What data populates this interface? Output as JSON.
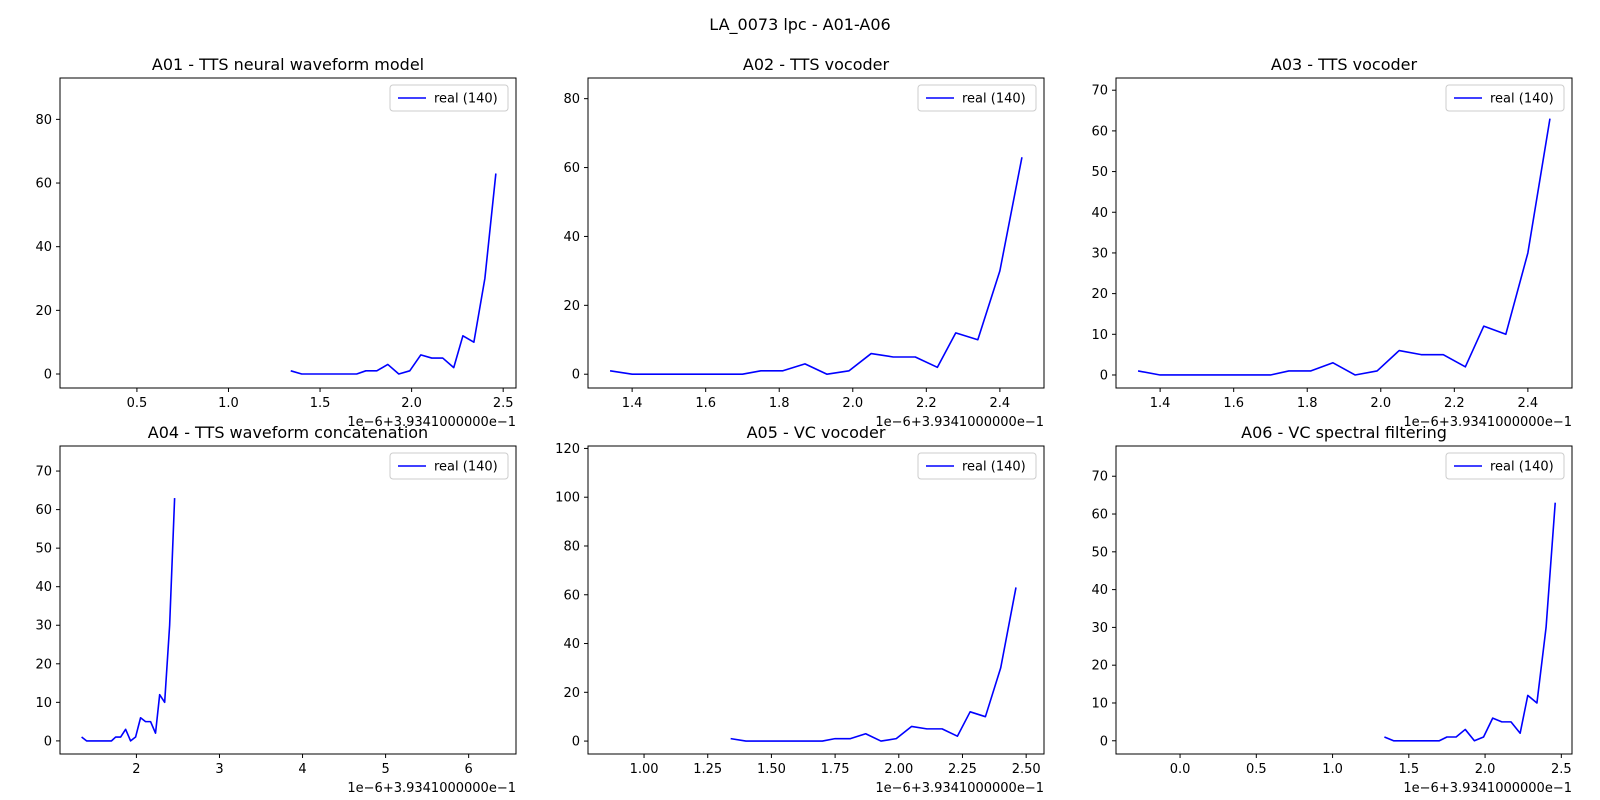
{
  "suptitle": "LA_0073 lpc - A01-A06",
  "chart_data": [
    {
      "type": "line",
      "title": "A01 - TTS neural waveform model",
      "x_offset_label": "1e−6+3.9341000000e−1",
      "xlim": [
        0.08,
        2.57
      ],
      "ylim": [
        -4.4,
        93
      ],
      "xticks": [
        0.5,
        1.0,
        1.5,
        2.0,
        2.5
      ],
      "xtick_labels": [
        "0.5",
        "1.0",
        "1.5",
        "2.0",
        "2.5"
      ],
      "yticks": [
        0,
        20,
        40,
        60,
        80
      ],
      "ytick_labels": [
        "0",
        "20",
        "40",
        "60",
        "80"
      ],
      "legend_position": "upper right",
      "series": [
        {
          "name": "real (140)",
          "color": "#0000ff",
          "x": [
            1.34,
            1.4,
            1.46,
            1.52,
            1.58,
            1.64,
            1.7,
            1.75,
            1.81,
            1.87,
            1.93,
            1.99,
            2.05,
            2.11,
            2.17,
            2.23,
            2.28,
            2.34,
            2.4,
            2.46
          ],
          "y": [
            1,
            0,
            0,
            0,
            0,
            0,
            0,
            1,
            1,
            3,
            0,
            1,
            6,
            5,
            5,
            2,
            12,
            10,
            30,
            63
          ]
        }
      ]
    },
    {
      "type": "line",
      "title": "A02 - TTS vocoder",
      "x_offset_label": "1e−6+3.9341000000e−1",
      "xlim": [
        1.28,
        2.52
      ],
      "ylim": [
        -4,
        86
      ],
      "xticks": [
        1.4,
        1.6,
        1.8,
        2.0,
        2.2,
        2.4
      ],
      "xtick_labels": [
        "1.4",
        "1.6",
        "1.8",
        "2.0",
        "2.2",
        "2.4"
      ],
      "yticks": [
        0,
        20,
        40,
        60,
        80
      ],
      "ytick_labels": [
        "0",
        "20",
        "40",
        "60",
        "80"
      ],
      "legend_position": "upper right",
      "series": [
        {
          "name": "real (140)",
          "color": "#0000ff",
          "x": [
            1.34,
            1.4,
            1.46,
            1.52,
            1.58,
            1.64,
            1.7,
            1.75,
            1.81,
            1.87,
            1.93,
            1.99,
            2.05,
            2.11,
            2.17,
            2.23,
            2.28,
            2.34,
            2.4,
            2.46
          ],
          "y": [
            1,
            0,
            0,
            0,
            0,
            0,
            0,
            1,
            1,
            3,
            0,
            1,
            6,
            5,
            5,
            2,
            12,
            10,
            30,
            63
          ]
        }
      ]
    },
    {
      "type": "line",
      "title": "A03 - TTS vocoder",
      "x_offset_label": "1e−6+3.9341000000e−1",
      "xlim": [
        1.28,
        2.52
      ],
      "ylim": [
        -3.2,
        73
      ],
      "xticks": [
        1.4,
        1.6,
        1.8,
        2.0,
        2.2,
        2.4
      ],
      "xtick_labels": [
        "1.4",
        "1.6",
        "1.8",
        "2.0",
        "2.2",
        "2.4"
      ],
      "yticks": [
        0,
        10,
        20,
        30,
        40,
        50,
        60,
        70
      ],
      "ytick_labels": [
        "0",
        "10",
        "20",
        "30",
        "40",
        "50",
        "60",
        "70"
      ],
      "legend_position": "upper right",
      "series": [
        {
          "name": "real (140)",
          "color": "#0000ff",
          "x": [
            1.34,
            1.4,
            1.46,
            1.52,
            1.58,
            1.64,
            1.7,
            1.75,
            1.81,
            1.87,
            1.93,
            1.99,
            2.05,
            2.11,
            2.17,
            2.23,
            2.28,
            2.34,
            2.4,
            2.46
          ],
          "y": [
            1,
            0,
            0,
            0,
            0,
            0,
            0,
            1,
            1,
            3,
            0,
            1,
            6,
            5,
            5,
            2,
            12,
            10,
            30,
            63
          ]
        }
      ]
    },
    {
      "type": "line",
      "title": "A04 - TTS waveform concatenation",
      "x_offset_label": "1e−6+3.9341000000e−1",
      "xlim": [
        1.08,
        6.57
      ],
      "ylim": [
        -3.4,
        76.5
      ],
      "xticks": [
        2,
        3,
        4,
        5,
        6
      ],
      "xtick_labels": [
        "2",
        "3",
        "4",
        "5",
        "6"
      ],
      "yticks": [
        0,
        10,
        20,
        30,
        40,
        50,
        60,
        70
      ],
      "ytick_labels": [
        "0",
        "10",
        "20",
        "30",
        "40",
        "50",
        "60",
        "70"
      ],
      "legend_position": "upper right",
      "series": [
        {
          "name": "real (140)",
          "color": "#0000ff",
          "x": [
            1.34,
            1.4,
            1.46,
            1.52,
            1.58,
            1.64,
            1.7,
            1.75,
            1.81,
            1.87,
            1.93,
            1.99,
            2.05,
            2.11,
            2.17,
            2.23,
            2.28,
            2.34,
            2.4,
            2.46
          ],
          "y": [
            1,
            0,
            0,
            0,
            0,
            0,
            0,
            1,
            1,
            3,
            0,
            1,
            6,
            5,
            5,
            2,
            12,
            10,
            30,
            63
          ]
        }
      ]
    },
    {
      "type": "line",
      "title": "A05 - VC vocoder",
      "x_offset_label": "1e−6+3.9341000000e−1",
      "xlim": [
        0.78,
        2.57
      ],
      "ylim": [
        -5.3,
        121
      ],
      "xticks": [
        1.0,
        1.25,
        1.5,
        1.75,
        2.0,
        2.25,
        2.5
      ],
      "xtick_labels": [
        "1.00",
        "1.25",
        "1.50",
        "1.75",
        "2.00",
        "2.25",
        "2.50"
      ],
      "yticks": [
        0,
        20,
        40,
        60,
        80,
        100,
        120
      ],
      "ytick_labels": [
        "0",
        "20",
        "40",
        "60",
        "80",
        "100",
        "120"
      ],
      "legend_position": "upper right",
      "series": [
        {
          "name": "real (140)",
          "color": "#0000ff",
          "x": [
            1.34,
            1.4,
            1.46,
            1.52,
            1.58,
            1.64,
            1.7,
            1.75,
            1.81,
            1.87,
            1.93,
            1.99,
            2.05,
            2.11,
            2.17,
            2.23,
            2.28,
            2.34,
            2.4,
            2.46
          ],
          "y": [
            1,
            0,
            0,
            0,
            0,
            0,
            0,
            1,
            1,
            3,
            0,
            1,
            6,
            5,
            5,
            2,
            12,
            10,
            30,
            63
          ]
        }
      ]
    },
    {
      "type": "line",
      "title": "A06 - VC spectral filtering",
      "x_offset_label": "1e−6+3.9341000000e−1",
      "xlim": [
        -0.42,
        2.57
      ],
      "ylim": [
        -3.5,
        78
      ],
      "xticks": [
        0.0,
        0.5,
        1.0,
        1.5,
        2.0,
        2.5
      ],
      "xtick_labels": [
        "0.0",
        "0.5",
        "1.0",
        "1.5",
        "2.0",
        "2.5"
      ],
      "yticks": [
        0,
        10,
        20,
        30,
        40,
        50,
        60,
        70
      ],
      "ytick_labels": [
        "0",
        "10",
        "20",
        "30",
        "40",
        "50",
        "60",
        "70"
      ],
      "legend_position": "upper right",
      "series": [
        {
          "name": "real (140)",
          "color": "#0000ff",
          "x": [
            1.34,
            1.4,
            1.46,
            1.52,
            1.58,
            1.64,
            1.7,
            1.75,
            1.81,
            1.87,
            1.93,
            1.99,
            2.05,
            2.11,
            2.17,
            2.23,
            2.28,
            2.34,
            2.4,
            2.46
          ],
          "y": [
            1,
            0,
            0,
            0,
            0,
            0,
            0,
            1,
            1,
            3,
            0,
            1,
            6,
            5,
            5,
            2,
            12,
            10,
            30,
            63
          ]
        }
      ]
    }
  ]
}
